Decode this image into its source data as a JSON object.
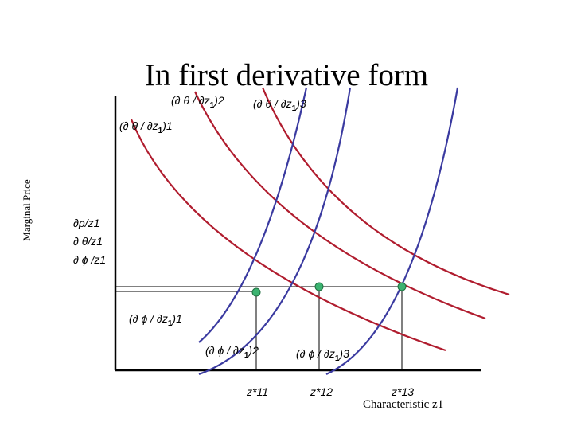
{
  "title": "In first derivative form",
  "axis": {
    "y_label": "Marginal Price",
    "x_label": "Characteristic z1",
    "y_ticks": [
      "∂p/z1",
      "∂ θ/z1",
      "∂ ϕ /z1"
    ]
  },
  "theta_labels": [
    {
      "text": "(∂ θ / ∂z",
      "sub": "1",
      "idx": ")1"
    },
    {
      "text": "(∂ θ / ∂z",
      "sub": "1",
      "idx": ")2"
    },
    {
      "text": "(∂ θ / ∂z",
      "sub": "1",
      "idx": ")3"
    }
  ],
  "phi_labels": [
    {
      "text": "(∂ ϕ / ∂z",
      "sub": "1",
      "idx": ")1"
    },
    {
      "text": "(∂ ϕ / ∂z",
      "sub": "1",
      "idx": ")2"
    },
    {
      "text": "(∂ ϕ / ∂z",
      "sub": "1",
      "idx": ")3"
    }
  ],
  "equilibria": [
    "z*11",
    "z*12",
    "z*13"
  ],
  "colors": {
    "theta_curve": "#b01c2e",
    "phi_curve": "#3a3aa0",
    "point": "#3cb371",
    "axis": "#000000"
  }
}
